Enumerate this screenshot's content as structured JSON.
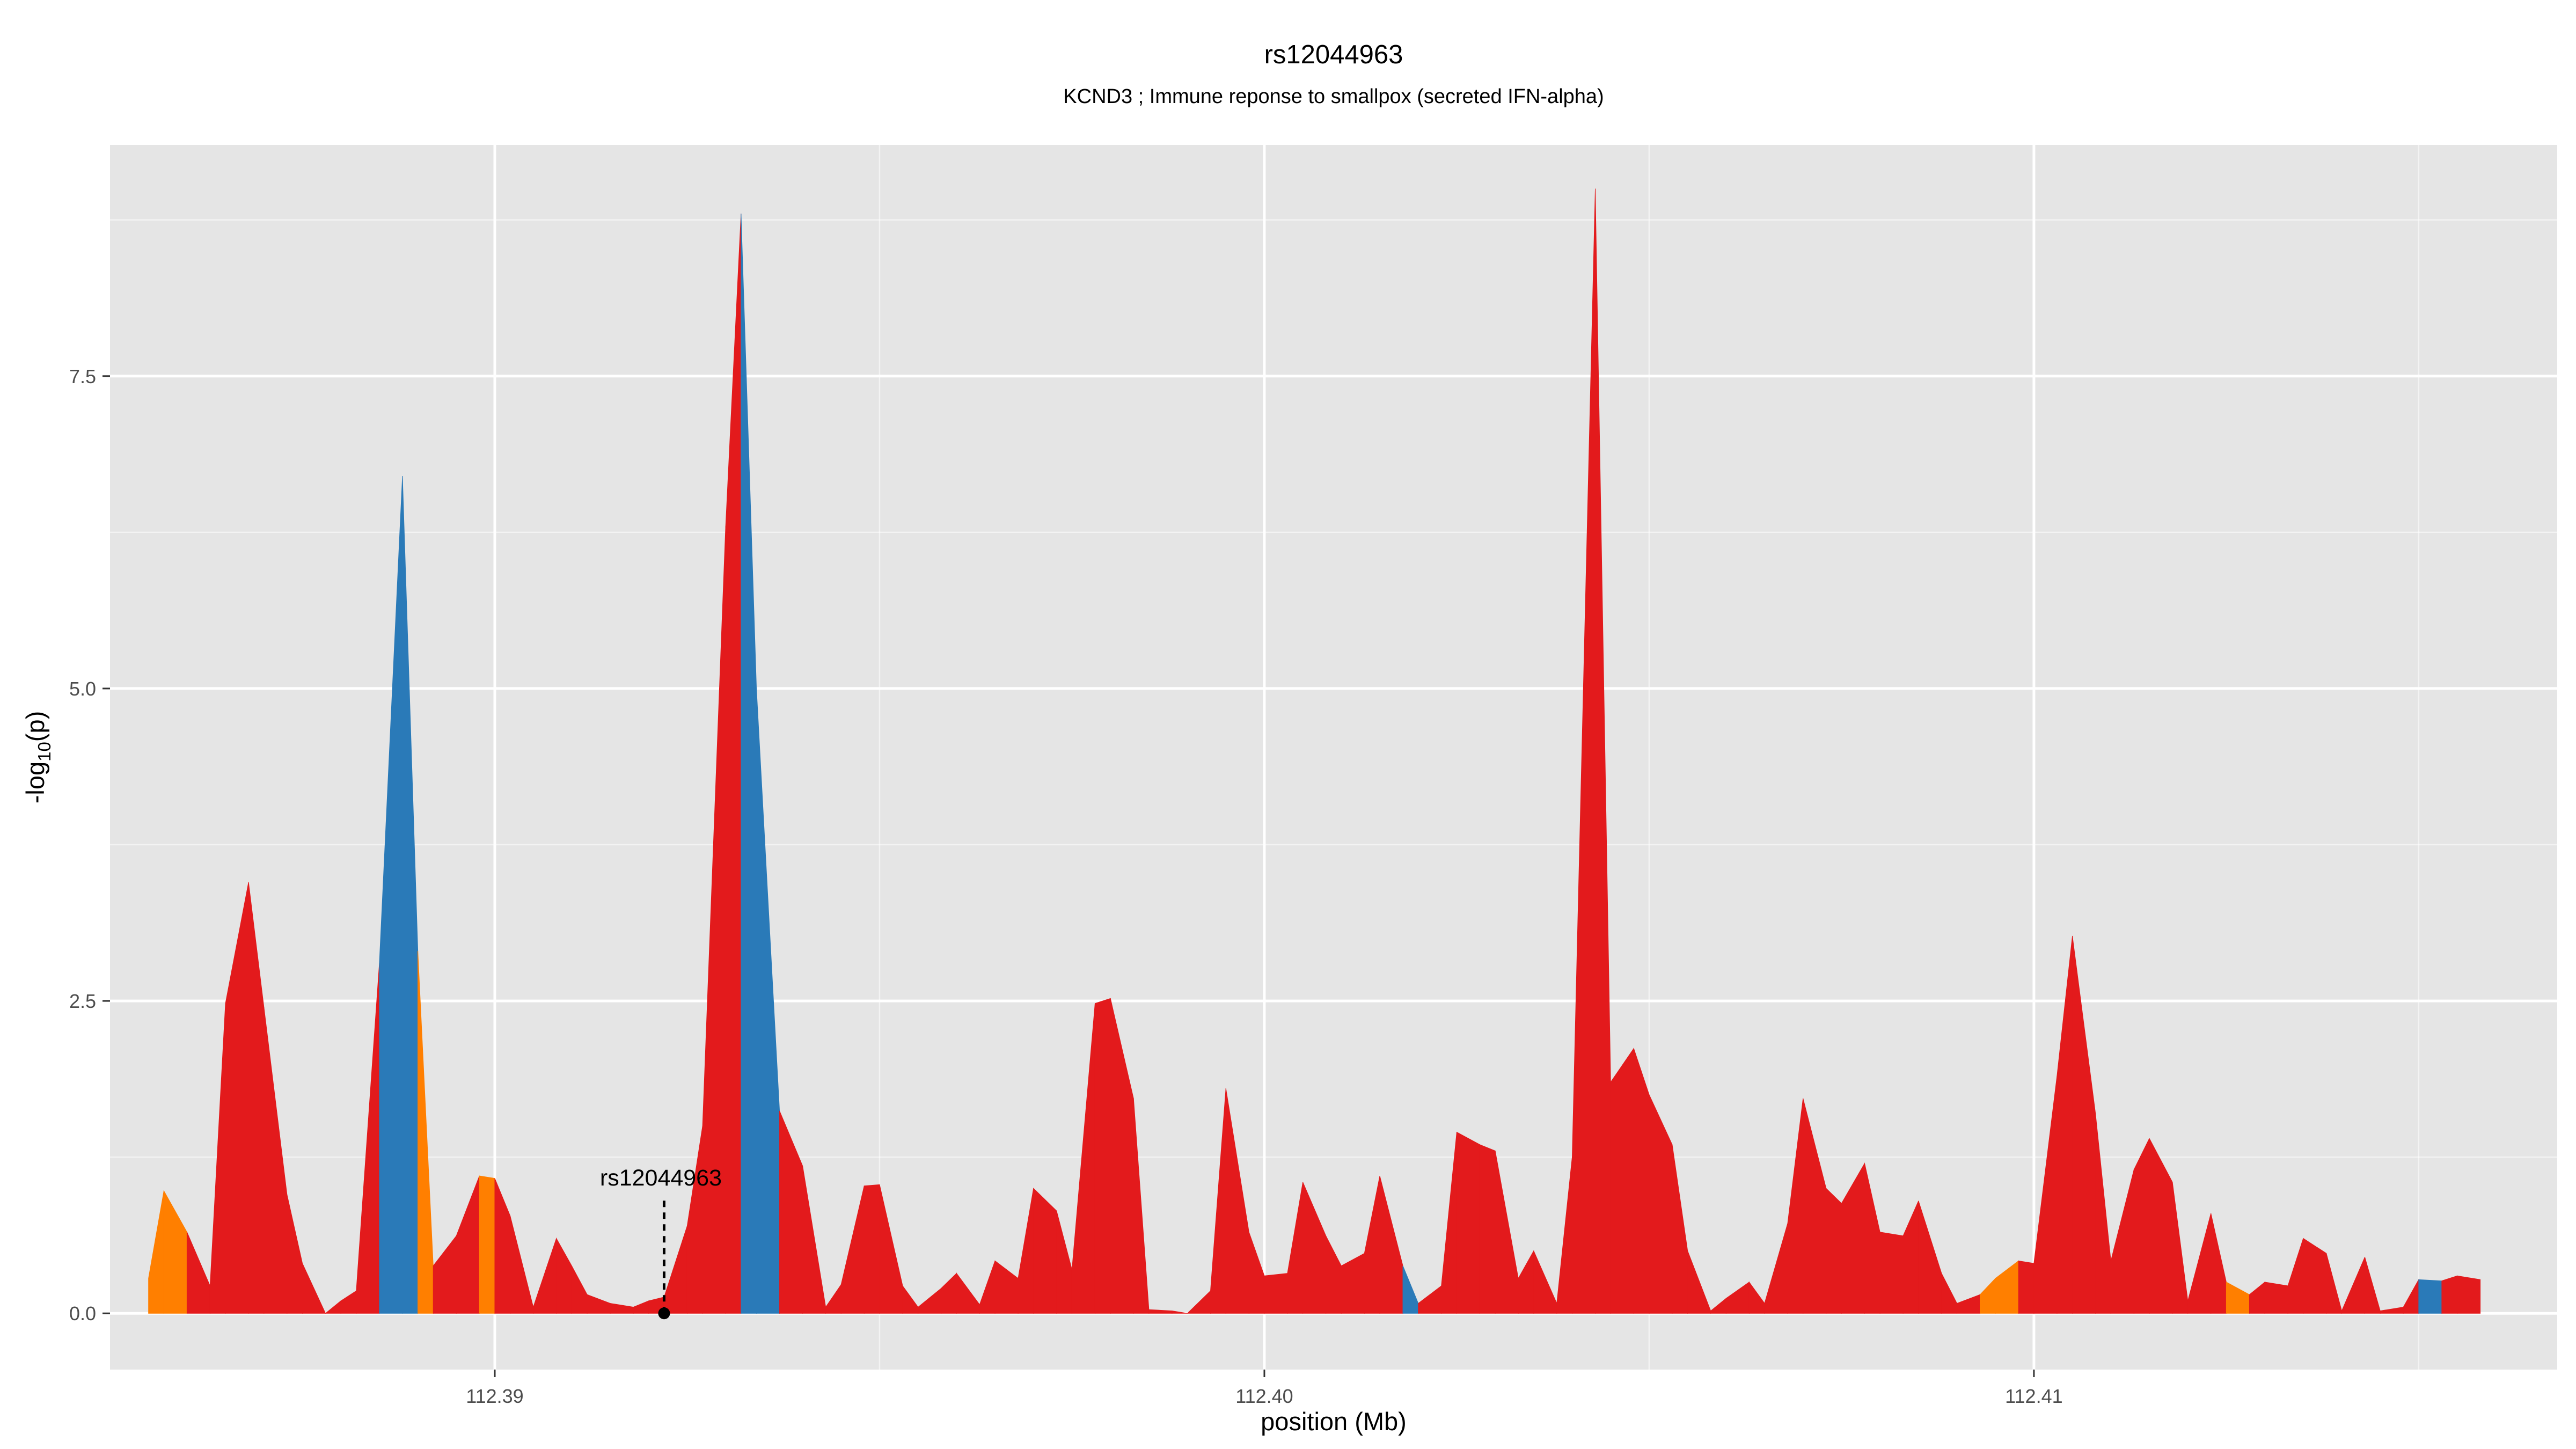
{
  "chart_data": {
    "type": "area",
    "title": "rs12044963",
    "subtitle": "KCND3 ; Immune reponse to smallpox (secreted IFN-alpha)",
    "xlabel": "position (Mb)",
    "ylabel": "-log10(p)",
    "ylabel_main": "-log",
    "ylabel_sub": "10",
    "ylabel_tail": "(p)",
    "xlim": [
      112.385,
      112.4168
    ],
    "ylim": [
      -0.45,
      9.35
    ],
    "x_ticks": [
      112.39,
      112.4,
      112.41
    ],
    "x_tick_labels": [
      "112.39",
      "112.40",
      "112.41"
    ],
    "y_ticks": [
      0,
      2.5,
      5,
      7.5
    ],
    "y_tick_labels": [
      "0.0",
      "2.5",
      "5.0",
      "7.5"
    ],
    "grid": true,
    "colors": {
      "panel_background": "#e5e5e5",
      "grid_line": "#ffffff",
      "area_fill": "#e31a1c",
      "highlight_blue": "#2a7ab8",
      "highlight_orange": "#ff7f00",
      "text": "#000000",
      "tick_text": "#4d4d4d"
    },
    "annotation": {
      "label": "rs12044963",
      "x": 112.3922,
      "y": 0
    },
    "points": [
      {
        "x": 112.3855,
        "y": 0.28,
        "c": "orange"
      },
      {
        "x": 112.3857,
        "y": 0.98,
        "c": "orange"
      },
      {
        "x": 112.386,
        "y": 0.65
      },
      {
        "x": 112.3863,
        "y": 0.22
      },
      {
        "x": 112.3865,
        "y": 2.48
      },
      {
        "x": 112.3868,
        "y": 3.45
      },
      {
        "x": 112.387,
        "y": 2.45
      },
      {
        "x": 112.3873,
        "y": 0.95
      },
      {
        "x": 112.3875,
        "y": 0.4
      },
      {
        "x": 112.3878,
        "y": 0.0
      },
      {
        "x": 112.388,
        "y": 0.1
      },
      {
        "x": 112.3882,
        "y": 0.18
      },
      {
        "x": 112.3885,
        "y": 2.8,
        "c": "blue"
      },
      {
        "x": 112.3888,
        "y": 6.7,
        "c": "blue"
      },
      {
        "x": 112.389,
        "y": 2.9,
        "c": "orange"
      },
      {
        "x": 112.3892,
        "y": 0.38
      },
      {
        "x": 112.3895,
        "y": 0.62
      },
      {
        "x": 112.3898,
        "y": 1.1,
        "c": "orange"
      },
      {
        "x": 112.39,
        "y": 1.08
      },
      {
        "x": 112.3902,
        "y": 0.78
      },
      {
        "x": 112.3905,
        "y": 0.05
      },
      {
        "x": 112.3908,
        "y": 0.6
      },
      {
        "x": 112.391,
        "y": 0.38
      },
      {
        "x": 112.3912,
        "y": 0.15
      },
      {
        "x": 112.3915,
        "y": 0.08
      },
      {
        "x": 112.3918,
        "y": 0.05
      },
      {
        "x": 112.392,
        "y": 0.1
      },
      {
        "x": 112.3922,
        "y": 0.13
      },
      {
        "x": 112.3925,
        "y": 0.7
      },
      {
        "x": 112.3927,
        "y": 1.5
      },
      {
        "x": 112.393,
        "y": 6.3
      },
      {
        "x": 112.3932,
        "y": 8.8,
        "c": "blue"
      },
      {
        "x": 112.3934,
        "y": 5.0,
        "c": "blue"
      },
      {
        "x": 112.3937,
        "y": 1.62
      },
      {
        "x": 112.394,
        "y": 1.18
      },
      {
        "x": 112.3943,
        "y": 0.05
      },
      {
        "x": 112.3945,
        "y": 0.23
      },
      {
        "x": 112.3948,
        "y": 1.02
      },
      {
        "x": 112.395,
        "y": 1.03
      },
      {
        "x": 112.3953,
        "y": 0.22
      },
      {
        "x": 112.3955,
        "y": 0.05
      },
      {
        "x": 112.3958,
        "y": 0.2
      },
      {
        "x": 112.396,
        "y": 0.32
      },
      {
        "x": 112.3963,
        "y": 0.07
      },
      {
        "x": 112.3965,
        "y": 0.42
      },
      {
        "x": 112.3968,
        "y": 0.28
      },
      {
        "x": 112.397,
        "y": 1.0
      },
      {
        "x": 112.3973,
        "y": 0.82
      },
      {
        "x": 112.3975,
        "y": 0.35
      },
      {
        "x": 112.3978,
        "y": 2.48
      },
      {
        "x": 112.398,
        "y": 2.52
      },
      {
        "x": 112.3983,
        "y": 1.72
      },
      {
        "x": 112.3985,
        "y": 0.03
      },
      {
        "x": 112.3988,
        "y": 0.02
      },
      {
        "x": 112.399,
        "y": 0.0
      },
      {
        "x": 112.3993,
        "y": 0.18
      },
      {
        "x": 112.3995,
        "y": 1.8
      },
      {
        "x": 112.3998,
        "y": 0.65
      },
      {
        "x": 112.4,
        "y": 0.3
      },
      {
        "x": 112.4003,
        "y": 0.32
      },
      {
        "x": 112.4005,
        "y": 1.05
      },
      {
        "x": 112.4008,
        "y": 0.62
      },
      {
        "x": 112.401,
        "y": 0.38
      },
      {
        "x": 112.4013,
        "y": 0.48
      },
      {
        "x": 112.4015,
        "y": 1.1
      },
      {
        "x": 112.4018,
        "y": 0.38,
        "c": "blue"
      },
      {
        "x": 112.402,
        "y": 0.08
      },
      {
        "x": 112.4023,
        "y": 0.22
      },
      {
        "x": 112.4025,
        "y": 1.45
      },
      {
        "x": 112.4028,
        "y": 1.35
      },
      {
        "x": 112.403,
        "y": 1.3
      },
      {
        "x": 112.4033,
        "y": 0.28
      },
      {
        "x": 112.4035,
        "y": 0.5
      },
      {
        "x": 112.4038,
        "y": 0.08
      },
      {
        "x": 112.404,
        "y": 1.25
      },
      {
        "x": 112.4043,
        "y": 9.0
      },
      {
        "x": 112.4045,
        "y": 1.85
      },
      {
        "x": 112.4048,
        "y": 2.12
      },
      {
        "x": 112.405,
        "y": 1.75
      },
      {
        "x": 112.4053,
        "y": 1.35
      },
      {
        "x": 112.4055,
        "y": 0.5
      },
      {
        "x": 112.4058,
        "y": 0.02
      },
      {
        "x": 112.406,
        "y": 0.12
      },
      {
        "x": 112.4063,
        "y": 0.25
      },
      {
        "x": 112.4065,
        "y": 0.08
      },
      {
        "x": 112.4068,
        "y": 0.72
      },
      {
        "x": 112.407,
        "y": 1.72
      },
      {
        "x": 112.4073,
        "y": 1.0
      },
      {
        "x": 112.4075,
        "y": 0.88
      },
      {
        "x": 112.4078,
        "y": 1.2
      },
      {
        "x": 112.408,
        "y": 0.65
      },
      {
        "x": 112.4083,
        "y": 0.62
      },
      {
        "x": 112.4085,
        "y": 0.9
      },
      {
        "x": 112.4088,
        "y": 0.32
      },
      {
        "x": 112.409,
        "y": 0.08
      },
      {
        "x": 112.4093,
        "y": 0.15,
        "c": "orange"
      },
      {
        "x": 112.4095,
        "y": 0.28,
        "c": "orange"
      },
      {
        "x": 112.4098,
        "y": 0.42
      },
      {
        "x": 112.41,
        "y": 0.4
      },
      {
        "x": 112.4103,
        "y": 1.9
      },
      {
        "x": 112.4105,
        "y": 3.02
      },
      {
        "x": 112.4108,
        "y": 1.6
      },
      {
        "x": 112.411,
        "y": 0.42
      },
      {
        "x": 112.4113,
        "y": 1.15
      },
      {
        "x": 112.4115,
        "y": 1.4
      },
      {
        "x": 112.4118,
        "y": 1.05
      },
      {
        "x": 112.412,
        "y": 0.1
      },
      {
        "x": 112.4123,
        "y": 0.8
      },
      {
        "x": 112.4125,
        "y": 0.25,
        "c": "orange"
      },
      {
        "x": 112.4128,
        "y": 0.15
      },
      {
        "x": 112.413,
        "y": 0.25
      },
      {
        "x": 112.4133,
        "y": 0.22
      },
      {
        "x": 112.4135,
        "y": 0.6
      },
      {
        "x": 112.4138,
        "y": 0.48
      },
      {
        "x": 112.414,
        "y": 0.02
      },
      {
        "x": 112.4143,
        "y": 0.45
      },
      {
        "x": 112.4145,
        "y": 0.02
      },
      {
        "x": 112.4148,
        "y": 0.05
      },
      {
        "x": 112.415,
        "y": 0.27,
        "c": "blue"
      },
      {
        "x": 112.4153,
        "y": 0.26
      },
      {
        "x": 112.4155,
        "y": 0.3
      },
      {
        "x": 112.4158,
        "y": 0.27
      }
    ]
  }
}
